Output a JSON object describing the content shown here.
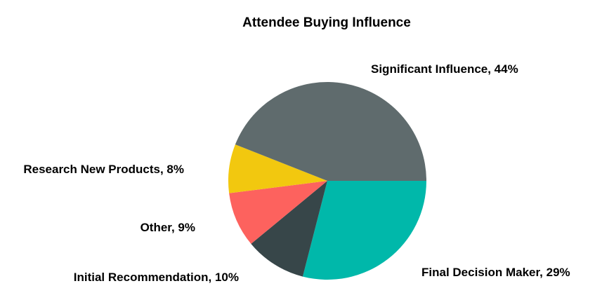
{
  "chart_data": {
    "type": "pie",
    "title": "Attendee Buying Influence",
    "start_angle_deg": 0,
    "direction": "clockwise",
    "slices": [
      {
        "label": "Final Decision Maker, 29%",
        "category": "Final Decision Maker",
        "value": 29,
        "color": "#00B8AA"
      },
      {
        "label": "Initial Recommendation, 10%",
        "category": "Initial Recommendation",
        "value": 10,
        "color": "#374649"
      },
      {
        "label": "Other, 9%",
        "category": "Other",
        "value": 9,
        "color": "#FD625E"
      },
      {
        "label": "Research New Products, 8%",
        "category": "Research New Products",
        "value": 8,
        "color": "#F2C80F"
      },
      {
        "label": "Significant Influence, 44%",
        "category": "Significant Influence",
        "value": 44,
        "color": "#5F6B6D"
      }
    ],
    "legend": "none"
  }
}
